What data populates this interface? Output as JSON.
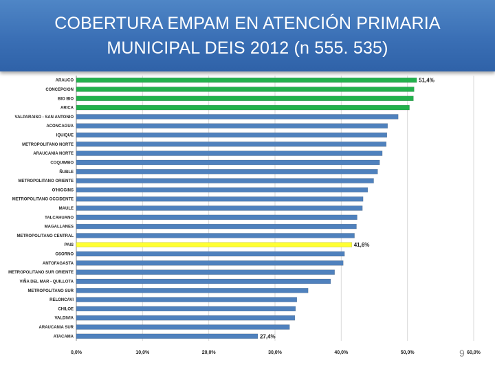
{
  "header": {
    "title_line1": "COBERTURA EMPAM  EN ATENCIÓN PRIMARIA",
    "title_line2": "MUNICIPAL DEIS 2012 (n 555. 535)"
  },
  "slide_number": "9",
  "colors": {
    "header_bg": "#3a6fb5",
    "bar_blue": "#4f81bd",
    "bar_green": "#22b14c",
    "bar_yellow": "#ffff33",
    "gridline": "#d9d9d9"
  },
  "chart_data": {
    "type": "bar",
    "orientation": "horizontal",
    "title": "COBERTURA EMPAM  EN ATENCIÓN PRIMARIA MUNICIPAL DEIS 2012 (n 555. 535)",
    "xlabel": "",
    "ylabel": "",
    "xlim": [
      0,
      60
    ],
    "grid": true,
    "categories": [
      "ARAUCO",
      "CONCEPCION",
      "BIO BIO",
      "ARICA",
      "VALPARAISO - SAN ANTONIO",
      "ACONCAGUA",
      "IQUIQUE",
      "METROPOLITANO NORTE",
      "ARAUCANIA NORTE",
      "COQUIMBO",
      "ÑUBLE",
      "METROPOLITANO ORIENTE",
      "O'HIGGINS",
      "METROPOLITANO OCCIDENTE",
      "MAULE",
      "TALCAHUANO",
      "MAGALLANES",
      "METROPOLITANO CENTRAL",
      "PAIS",
      "OSORNO",
      "ANTOFAGASTA",
      "METROPOLITANO SUR ORIENTE",
      "VIÑA DEL MAR - QUILLOTA",
      "METROPOLITANO SUR",
      "RELONCAVI",
      "CHILOE",
      "VALDIVIA",
      "ARAUCANIA SUR",
      "ATACAMA"
    ],
    "values": [
      51.4,
      51.0,
      50.9,
      50.3,
      48.6,
      47.0,
      46.9,
      46.8,
      46.2,
      45.8,
      45.5,
      44.9,
      44.0,
      43.3,
      43.2,
      42.4,
      42.3,
      42.0,
      41.6,
      40.5,
      40.3,
      39.0,
      38.4,
      35.0,
      33.3,
      33.1,
      33.0,
      32.2,
      27.4
    ],
    "bar_colors": [
      "green",
      "green",
      "green",
      "green",
      "blue",
      "blue",
      "blue",
      "blue",
      "blue",
      "blue",
      "blue",
      "blue",
      "blue",
      "blue",
      "blue",
      "blue",
      "blue",
      "blue",
      "yellow",
      "blue",
      "blue",
      "blue",
      "blue",
      "blue",
      "blue",
      "blue",
      "blue",
      "blue",
      "blue"
    ],
    "x_ticks": [
      "0,0%",
      "10,0%",
      "20,0%",
      "30,0%",
      "40,0%",
      "50,0%",
      "60,0%"
    ],
    "x_tick_values": [
      0,
      10,
      20,
      30,
      40,
      50,
      60
    ],
    "data_labels": [
      {
        "index": 0,
        "text": "51,4%"
      },
      {
        "index": 18,
        "text": "41,6%"
      },
      {
        "index": 28,
        "text": "27,4%"
      }
    ]
  }
}
